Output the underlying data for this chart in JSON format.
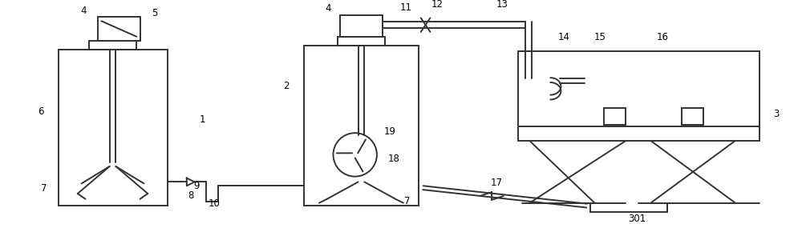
{
  "bg_color": "#ffffff",
  "line_color": "#333333",
  "line_width": 1.4,
  "figsize": [
    10.0,
    3.1
  ],
  "dpi": 100
}
